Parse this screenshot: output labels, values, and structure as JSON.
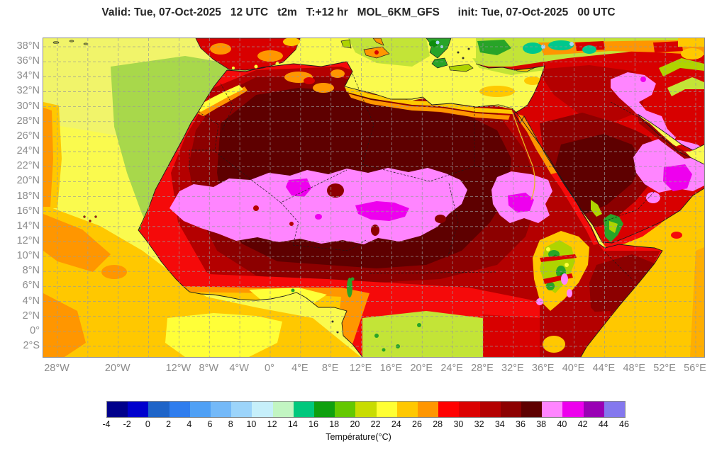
{
  "title": {
    "text": "Valid: Tue, 07-Oct-2025   12 UTC   t2m   T:+12 hr   MOL_6KM_GFS      init: Tue, 07-Oct-2025   00 UTC",
    "valid_time": "Tue, 07-Oct-2025 12 UTC",
    "variable": "t2m",
    "forecast_hour": "T:+12 hr",
    "model": "MOL_6KM_GFS",
    "init_time": "Tue, 07-Oct-2025 00 UTC"
  },
  "map": {
    "lat_labels": [
      "38°N",
      "36°N",
      "34°N",
      "32°N",
      "30°N",
      "28°N",
      "26°N",
      "24°N",
      "22°N",
      "20°N",
      "18°N",
      "16°N",
      "14°N",
      "12°N",
      "10°N",
      "8°N",
      "6°N",
      "4°N",
      "2°N",
      "0°",
      "2°S"
    ],
    "lon_labels": [
      {
        "label": "28°W",
        "lon": -28
      },
      {
        "label": "20°W",
        "lon": -20
      },
      {
        "label": "12°W",
        "lon": -12
      },
      {
        "label": "8°W",
        "lon": -8
      },
      {
        "label": "4°W",
        "lon": -4
      },
      {
        "label": "0°",
        "lon": 0
      },
      {
        "label": "4°E",
        "lon": 4
      },
      {
        "label": "8°E",
        "lon": 8
      },
      {
        "label": "12°E",
        "lon": 12
      },
      {
        "label": "16°E",
        "lon": 16
      },
      {
        "label": "20°E",
        "lon": 20
      },
      {
        "label": "24°E",
        "lon": 24
      },
      {
        "label": "28°E",
        "lon": 28
      },
      {
        "label": "32°E",
        "lon": 32
      },
      {
        "label": "36°E",
        "lon": 36
      },
      {
        "label": "40°E",
        "lon": 40
      },
      {
        "label": "44°E",
        "lon": 44
      },
      {
        "label": "48°E",
        "lon": 48
      },
      {
        "label": "52°E",
        "lon": 52
      },
      {
        "label": "56°E",
        "lon": 56
      }
    ],
    "grid": {
      "lon_start": -28,
      "lon_end": 56,
      "lon_step": 4,
      "lat_start": 38,
      "lat_end": -2,
      "lat_step": 2
    }
  },
  "colorbar": {
    "title": "Température(°C)",
    "tick_labels": [
      "-4",
      "-2",
      "0",
      "2",
      "4",
      "6",
      "8",
      "10",
      "12",
      "14",
      "16",
      "18",
      "20",
      "22",
      "24",
      "26",
      "28",
      "30",
      "32",
      "34",
      "36",
      "38",
      "40",
      "42",
      "44",
      "46"
    ],
    "cell_colors": [
      "#00008B",
      "#0000CD",
      "#1E64C8",
      "#2F7DEE",
      "#4FA0F5",
      "#74B9F8",
      "#9CD4FA",
      "#C6EFFA",
      "#C2F5C2",
      "#00C87D",
      "#0FA00F",
      "#64C800",
      "#C8DC00",
      "#FFFF33",
      "#FFC800",
      "#FF9600",
      "#FF0000",
      "#DC0000",
      "#B40000",
      "#8C0000",
      "#5E0000",
      "#FF85FF",
      "#ED00ED",
      "#9900B4",
      "#8478EE"
    ]
  },
  "palette": {
    "sea_yellow": "#FAFA4E",
    "sea_pale": "#F1F46A",
    "sea_green": "#A8D84B",
    "med_green": "#C3E437",
    "green": "#28A428",
    "dark_green": "#0E8C0E",
    "teal": "#00C88C",
    "pale_blue": "#A8D8F8",
    "yellow": "#FFFF38",
    "ygreen": "#AFD400",
    "gold": "#FFC800",
    "orange": "#FF9600",
    "red": "#F50A0A",
    "red2": "#D80000",
    "dark_red": "#B40000",
    "maroon": "#8C0000",
    "dark_maroon": "#5E0000",
    "pink": "#FF85FF",
    "magenta": "#EE00EE",
    "gulf": "#A00000"
  }
}
